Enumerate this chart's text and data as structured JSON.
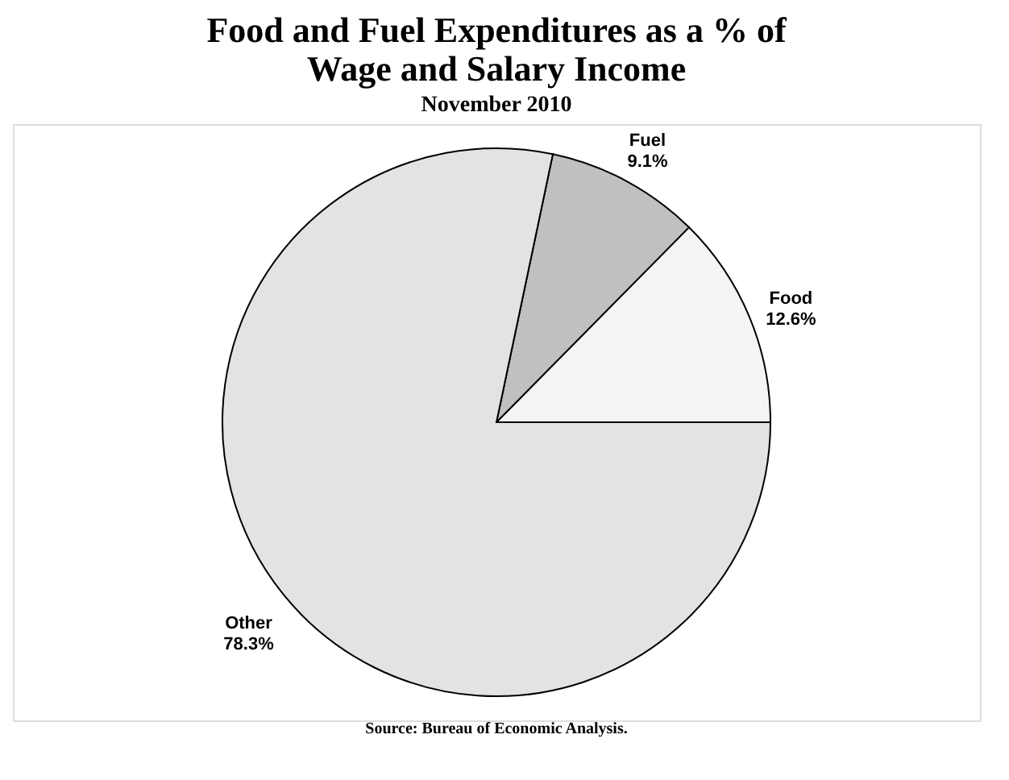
{
  "chart_data": {
    "type": "pie",
    "title": "Food and Fuel Expenditures as a % of Wage and Salary Income",
    "subtitle": "November 2010",
    "categories": [
      "Food",
      "Fuel",
      "Other"
    ],
    "values": [
      12.6,
      9.1,
      78.3
    ],
    "value_labels": [
      "12.6%",
      "9.1%",
      "78.3%"
    ],
    "colors": [
      "#f4f4f4",
      "#c0c0c0",
      "#e3e3e3"
    ],
    "legend": false,
    "annotations": [
      "Source:  Bureau of Economic Analysis."
    ]
  }
}
